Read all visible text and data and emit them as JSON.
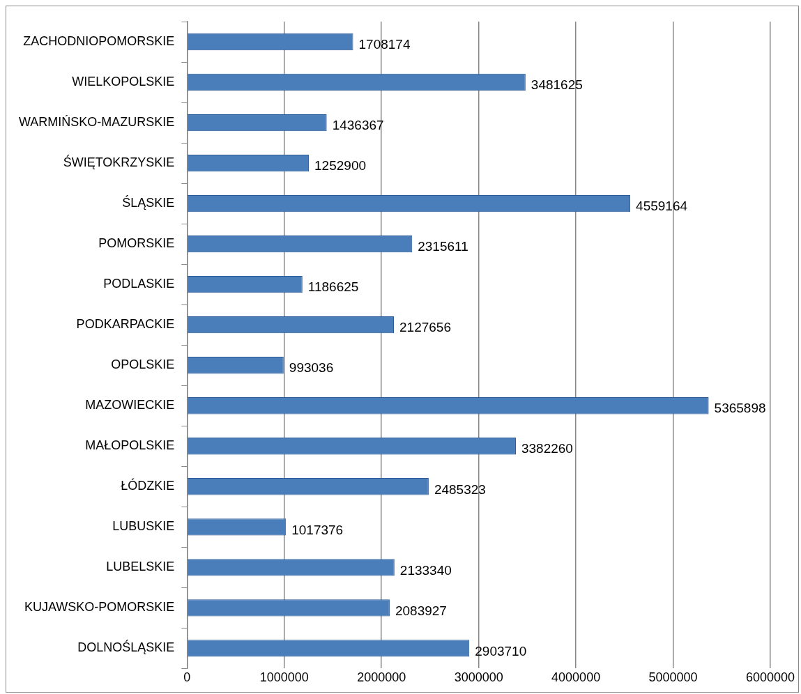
{
  "chart_data": {
    "type": "bar",
    "orientation": "horizontal",
    "categories": [
      "ZACHODNIOPOMORSKIE",
      "WIELKOPOLSKIE",
      "WARMIŃSKO-MAZURSKIE",
      "ŚWIĘTOKRZYSKIE",
      "ŚLĄSKIE",
      "POMORSKIE",
      "PODLASKIE",
      "PODKARPACKIE",
      "OPOLSKIE",
      "MAZOWIECKIE",
      "MAŁOPOLSKIE",
      "ŁÓDZKIE",
      "LUBUSKIE",
      "LUBELSKIE",
      "KUJAWSKO-POMORSKIE",
      "DOLNOŚLĄSKIE"
    ],
    "values": [
      1708174,
      3481625,
      1436367,
      1252900,
      4559164,
      2315611,
      1186625,
      2127656,
      993036,
      5365898,
      3382260,
      2485323,
      1017376,
      2133340,
      2083927,
      2903710
    ],
    "color": "#4a7ebb",
    "xlim": [
      0,
      6000000
    ],
    "xticks": [
      0,
      1000000,
      2000000,
      3000000,
      4000000,
      5000000,
      6000000
    ],
    "grid": "x",
    "data_labels": true,
    "legend": false
  }
}
